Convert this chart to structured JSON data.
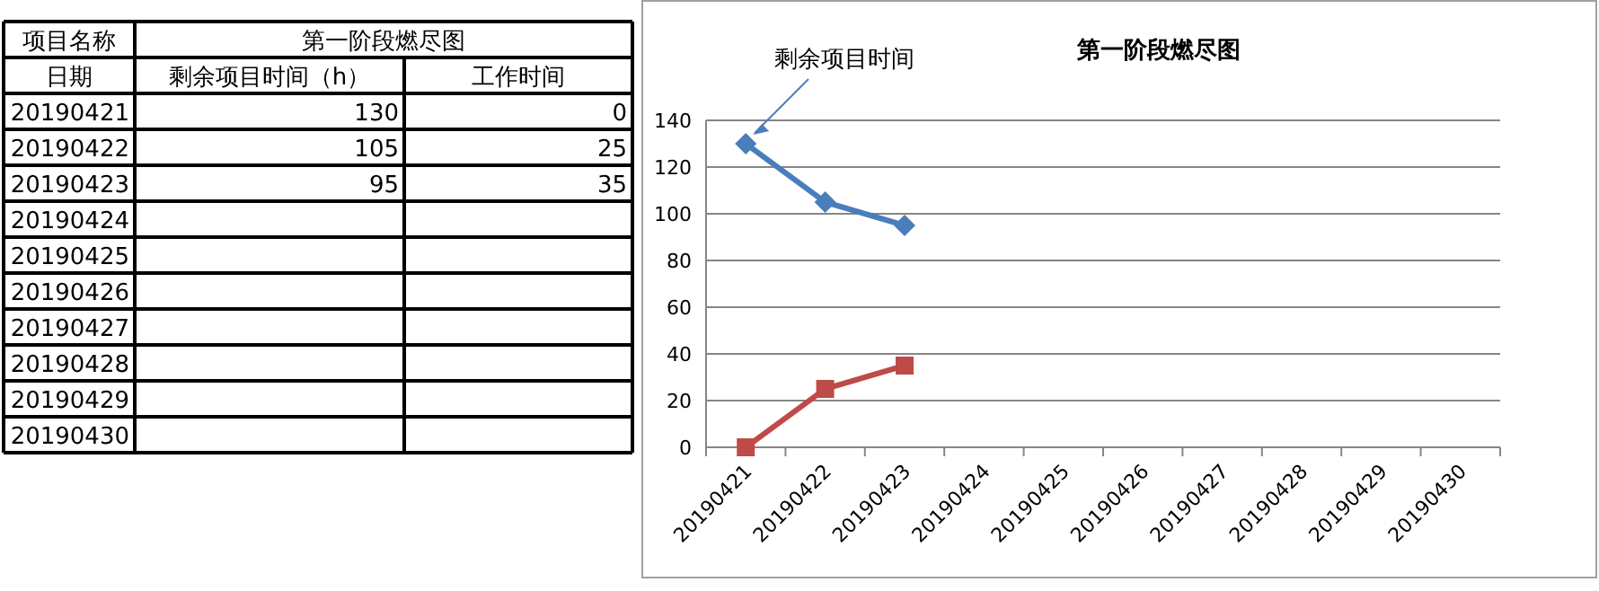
{
  "chart_data": [
    {
      "type": "heatmap",
      "data_labels": true,
      "title": "第一阶段燃尽图",
      "annotations": [
        "项目名称",
        "日期"
      ],
      "categories": [
        "剩余项目时间（h）",
        "工作时间"
      ],
      "y_categories": [
        "20190421",
        "20190422",
        "20190423",
        "20190424",
        "20190425",
        "20190426",
        "20190427",
        "20190428",
        "20190429",
        "20190430"
      ],
      "cells": [
        [
          130,
          0
        ],
        [
          105,
          25
        ],
        [
          95,
          35
        ],
        [
          null,
          null
        ],
        [
          null,
          null
        ],
        [
          null,
          null
        ],
        [
          null,
          null
        ],
        [
          null,
          null
        ],
        [
          null,
          null
        ],
        [
          null,
          null
        ]
      ]
    },
    {
      "type": "line",
      "title": "第一阶段燃尽图",
      "annotations": [
        {
          "text": "剩余项目时间",
          "x": "20190421",
          "y": 130
        }
      ],
      "categories": [
        "20190421",
        "20190422",
        "20190423",
        "20190424",
        "20190425",
        "20190426",
        "20190427",
        "20190428",
        "20190429",
        "20190430"
      ],
      "series": [
        {
          "color": "#4a7ebb",
          "marker": "diamond",
          "values": [
            130,
            105,
            95,
            null,
            null,
            null,
            null,
            null,
            null,
            null
          ]
        },
        {
          "color": "#be4b48",
          "marker": "square",
          "values": [
            0,
            25,
            35,
            null,
            null,
            null,
            null,
            null,
            null,
            null
          ]
        }
      ],
      "ylim": [
        0,
        140
      ],
      "yticks": [
        0,
        20,
        40,
        60,
        80,
        100,
        120,
        140
      ],
      "grid": "y"
    }
  ]
}
